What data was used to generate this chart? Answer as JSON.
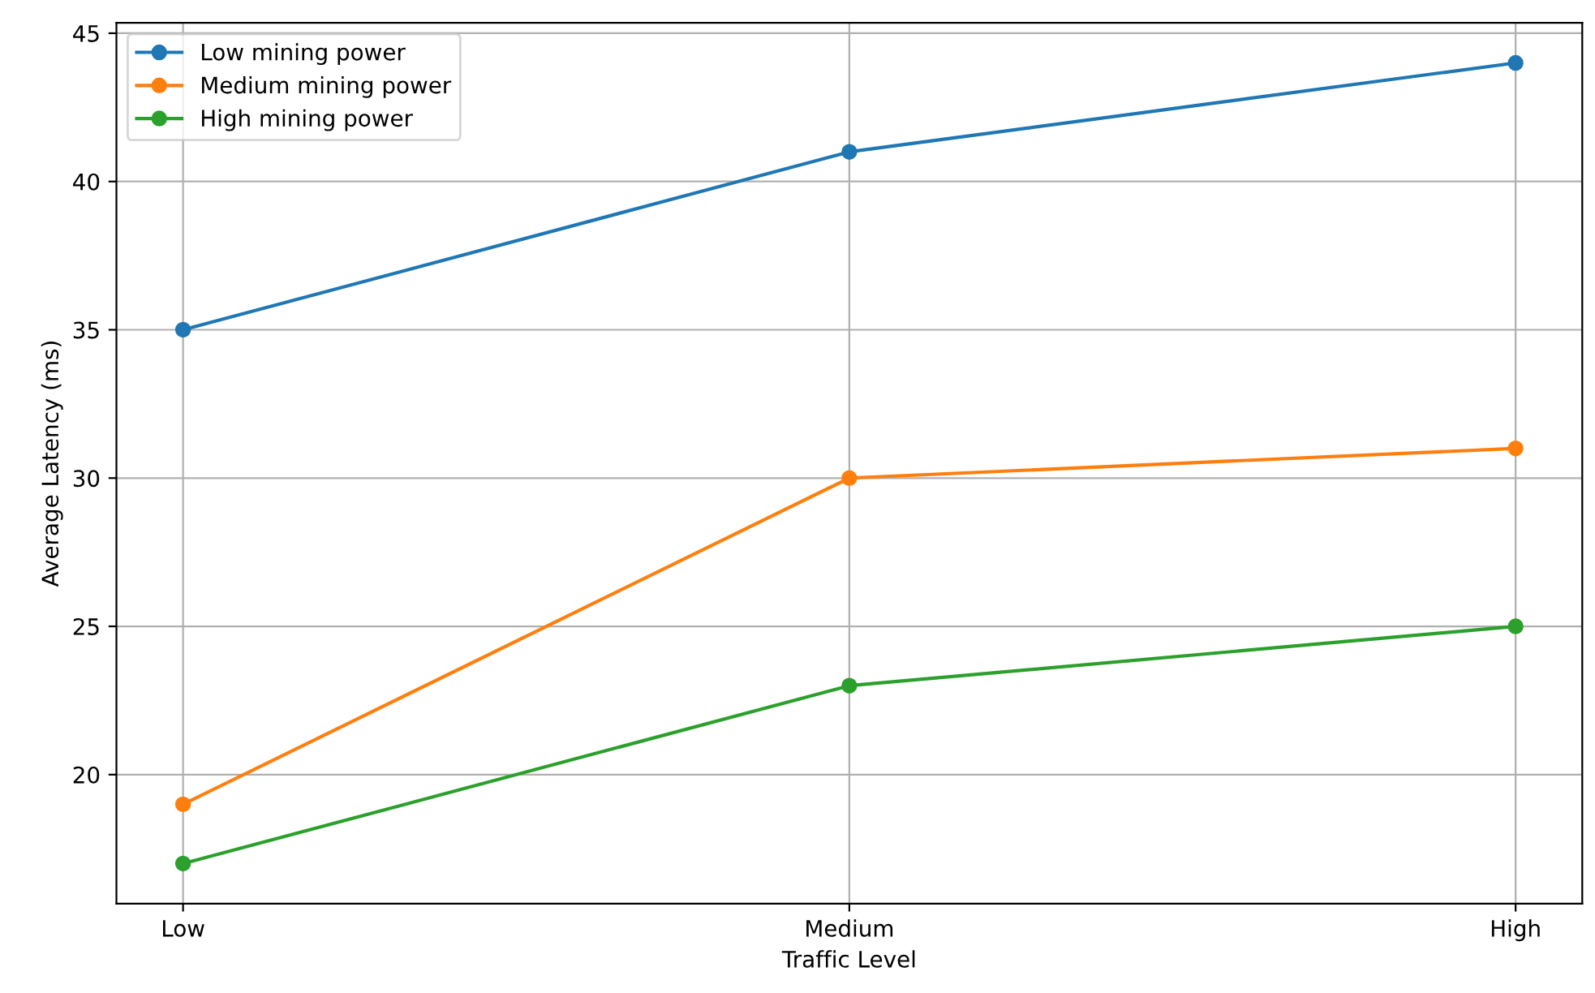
{
  "chart_data": {
    "type": "line",
    "xlabel": "Traffic Level",
    "ylabel": "Average Latency (ms)",
    "categories": [
      "Low",
      "Medium",
      "High"
    ],
    "series": [
      {
        "name": "Low mining power",
        "color": "#1f77b4",
        "values": [
          35,
          41,
          44
        ]
      },
      {
        "name": "Medium mining power",
        "color": "#ff7f0e",
        "values": [
          19,
          30,
          31
        ]
      },
      {
        "name": "High mining power",
        "color": "#2ca02c",
        "values": [
          17,
          23,
          25
        ]
      }
    ],
    "ylim": [
      15.65,
      45.35
    ],
    "yticks": [
      20,
      25,
      30,
      35,
      40,
      45
    ],
    "grid": true,
    "legend": "top left",
    "marker": "circle",
    "line_style": "solid"
  }
}
